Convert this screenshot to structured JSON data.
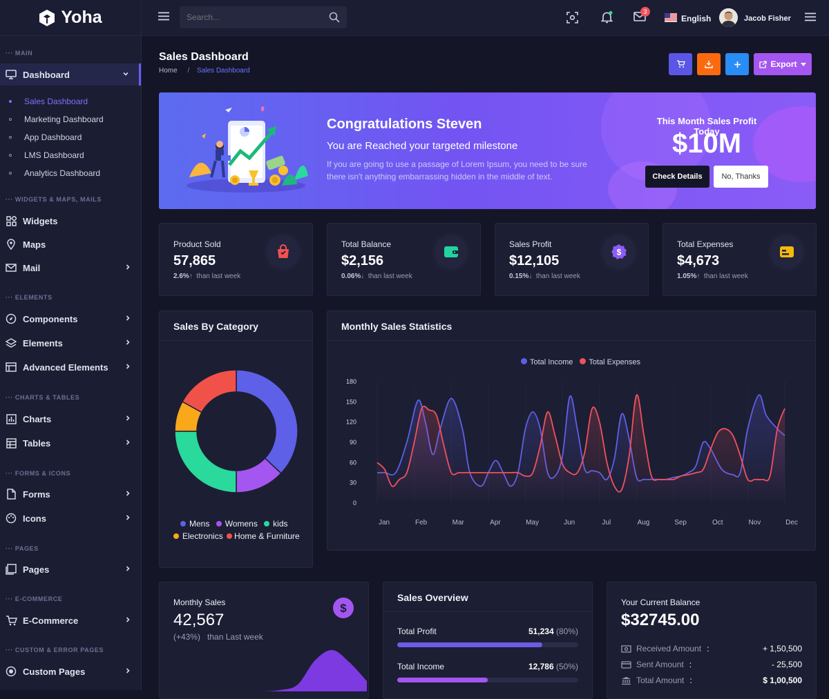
{
  "app": {
    "name": "Yoha"
  },
  "header": {
    "search_placeholder": "Search...",
    "language": "English",
    "mail_count": "3",
    "user_name": "Jacob Fisher"
  },
  "sidebar": {
    "sections": {
      "main": "MAIN",
      "widgets": "WIDGETS & MAPS, MAILS",
      "elements": "ELEMENTS",
      "charts": "CHARTS & TABLES",
      "forms": "FORMS & ICONS",
      "pages": "PAGES",
      "ecommerce": "E-COMMERCE",
      "custom": "CUSTOM & ERROR PAGES"
    },
    "dashboard": "Dashboard",
    "sub_items": [
      "Sales Dashboard",
      "Marketing Dashboard",
      "App Dashboard",
      "LMS Dashboard",
      "Analytics Dashboard"
    ],
    "widgets": "Widgets",
    "maps": "Maps",
    "mail": "Mail",
    "components": "Components",
    "elements": "Elements",
    "advanced": "Advanced Elements",
    "charts": "Charts",
    "tables": "Tables",
    "forms": "Forms",
    "icons": "Icons",
    "pages": "Pages",
    "ecommerce": "E-Commerce",
    "custom_pages": "Custom Pages"
  },
  "page": {
    "title": "Sales Dashboard",
    "breadcrumb_home": "Home",
    "breadcrumb_sep": "/",
    "breadcrumb_current": "Sales Dashboard",
    "export_label": "Export"
  },
  "banner": {
    "heading": "Congratulations Steven",
    "subheading": "You are Reached your targeted milestone",
    "text_line1": "If you are going to use a passage of Lorem Ipsum, you need to be sure",
    "text_line2": "there isn't anything embarrassing hidden in the middle of text.",
    "profit_label": "This Month Sales Profit Today",
    "profit_value": "$10M",
    "check_details": "Check Details",
    "no_thanks": "No, Thanks"
  },
  "stats": [
    {
      "label": "Product Sold",
      "value": "57,865",
      "pct": "2.6%",
      "arrow": "↑",
      "note": "than last week",
      "icon": "shopping-bag-icon",
      "color": "#f0524f"
    },
    {
      "label": "Total Balance",
      "value": "$2,156",
      "pct": "0.06%",
      "arrow": "↓",
      "note": "than last week",
      "icon": "wallet-icon",
      "color": "#22d3a0"
    },
    {
      "label": "Sales Profit",
      "value": "$12,105",
      "pct": "0.15%",
      "arrow": "↓",
      "note": "than last week",
      "icon": "dollar-badge-icon",
      "color": "#8b5cf6"
    },
    {
      "label": "Total Expenses",
      "value": "$4,673",
      "pct": "1.05%",
      "arrow": "↑",
      "note": "than last week",
      "icon": "credit-card-icon",
      "color": "#f5b90b"
    }
  ],
  "category_card": {
    "title": "Sales By Category"
  },
  "monthly_card": {
    "title": "Monthly Sales Statistics"
  },
  "monthly_sales": {
    "label": "Monthly Sales",
    "value": "42,567",
    "pct": "(+43%)",
    "note": "than Last week"
  },
  "overview": {
    "title": "Sales Overview",
    "rows": [
      {
        "label": "Total Profit",
        "value": "51,234",
        "pct": "(80%)",
        "fraction": 0.8,
        "color": "#6c5ce7"
      },
      {
        "label": "Total Income",
        "value": "12,786",
        "pct": "(50%)",
        "fraction": 0.5,
        "color": "#a456f0"
      }
    ]
  },
  "balance": {
    "label": "Your Current Balance",
    "value": "$32745.00",
    "rows": [
      {
        "label": "Received Amount",
        "sep": ":",
        "value": "+ 1,50,500",
        "icon": "money-icon"
      },
      {
        "label": "Sent Amount",
        "sep": ":",
        "value": "- 25,500",
        "icon": "card-icon"
      },
      {
        "label": "Total Amount",
        "sep": ":",
        "value": "$ 1,00,500",
        "icon": "bank-icon"
      }
    ]
  },
  "colors": {
    "primary": "#6c5ce7",
    "income": "#5e60e8",
    "expenses": "#f0525d",
    "orange": "#fc6a10",
    "blue": "#2a8cf5",
    "purple": "#a456f0"
  },
  "chart_data": [
    {
      "type": "pie",
      "title": "Sales By Category",
      "donut": true,
      "categories": [
        "Mens",
        "Womens",
        "kids",
        "Electronics",
        "Home & Furniture"
      ],
      "values": [
        37,
        13,
        25,
        8,
        17
      ],
      "colors": [
        "#5e60e8",
        "#a456f0",
        "#2ad99c",
        "#f9a71b",
        "#f0524a"
      ],
      "legend": "bottom"
    },
    {
      "type": "line",
      "title": "Monthly Sales Statistics",
      "categories": [
        "Jan",
        "Feb",
        "Mar",
        "Apr",
        "May",
        "Jun",
        "Jul",
        "Aug",
        "Sep",
        "Oct",
        "Nov",
        "Dec"
      ],
      "ylim": [
        0,
        180
      ],
      "yticks": [
        0,
        30,
        60,
        90,
        120,
        150,
        180
      ],
      "legend": "top",
      "series": [
        {
          "name": "Total Income",
          "color": "#5e60e8",
          "x": [
            0,
            0.2,
            0.5,
            0.8,
            1.1,
            1.3,
            1.5,
            1.7,
            2.0,
            2.3,
            2.5,
            2.8,
            3.0,
            3.2,
            3.4,
            3.6,
            3.8,
            4.0,
            4.2,
            4.4,
            4.6,
            4.8,
            5.0,
            5.2,
            5.4,
            5.6,
            5.8,
            6.0,
            6.2,
            6.4,
            6.6,
            6.8,
            7.0,
            7.2,
            7.4,
            7.6,
            7.8,
            8.0,
            8.2,
            8.4,
            8.6,
            8.8,
            9.0,
            9.3,
            9.6,
            9.8,
            10.0,
            10.3,
            10.5,
            10.8,
            11.0
          ],
          "y": [
            45,
            45,
            45,
            90,
            152,
            120,
            72,
            110,
            155,
            110,
            45,
            25,
            45,
            63,
            45,
            25,
            45,
            110,
            135,
            110,
            45,
            40,
            70,
            158,
            110,
            50,
            48,
            45,
            35,
            65,
            132,
            95,
            38,
            35,
            35,
            35,
            35,
            38,
            40,
            45,
            55,
            90,
            80,
            50,
            42,
            45,
            110,
            160,
            130,
            110,
            100
          ]
        },
        {
          "name": "Total Expenses",
          "color": "#f0525d",
          "x": [
            0,
            0.2,
            0.4,
            0.6,
            0.8,
            1.0,
            1.2,
            1.4,
            1.6,
            1.8,
            2.0,
            2.2,
            2.4,
            2.6,
            2.8,
            3.0,
            3.2,
            3.4,
            3.6,
            3.8,
            4.0,
            4.2,
            4.4,
            4.6,
            4.8,
            5.0,
            5.2,
            5.4,
            5.6,
            5.8,
            6.0,
            6.2,
            6.4,
            6.6,
            6.8,
            7.0,
            7.2,
            7.4,
            7.6,
            7.8,
            8.0,
            8.2,
            8.4,
            8.6,
            8.8,
            9.0,
            9.2,
            9.4,
            9.6,
            9.8,
            10.0,
            10.2,
            10.4,
            10.6,
            10.8,
            11.0
          ],
          "y": [
            60,
            50,
            25,
            35,
            45,
            90,
            140,
            138,
            130,
            85,
            45,
            45,
            45,
            45,
            45,
            45,
            45,
            45,
            45,
            45,
            40,
            45,
            85,
            135,
            100,
            58,
            45,
            45,
            75,
            140,
            120,
            60,
            25,
            20,
            70,
            160,
            100,
            40,
            35,
            35,
            35,
            40,
            42,
            45,
            50,
            80,
            105,
            110,
            100,
            70,
            35,
            35,
            35,
            40,
            110,
            140
          ]
        }
      ]
    },
    {
      "type": "area",
      "title": "Monthly Sales",
      "x": [
        0,
        1,
        2,
        3,
        4,
        5,
        6
      ],
      "y": [
        0,
        2,
        10,
        45,
        60,
        42,
        15
      ]
    }
  ]
}
